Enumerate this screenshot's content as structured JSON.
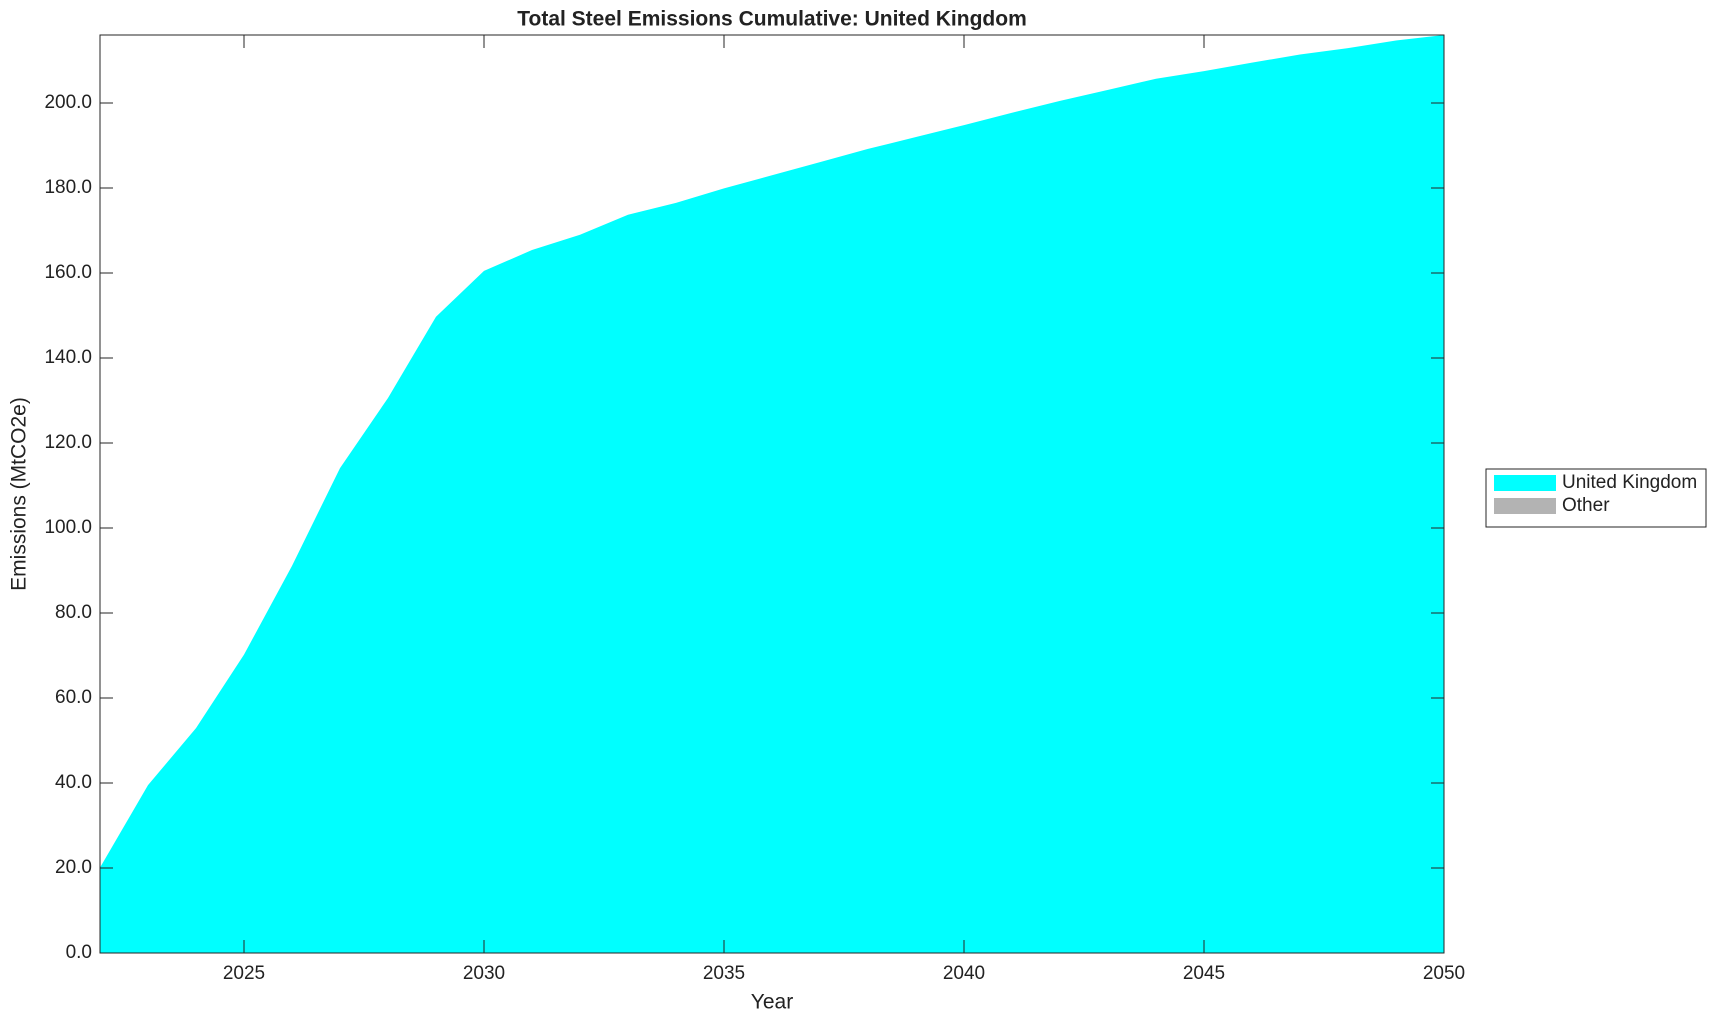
{
  "chart_data": {
    "type": "area",
    "stacked": true,
    "title": "Total Steel Emissions Cumulative: United Kingdom",
    "x_label": "Year",
    "y_label": "Emissions (MtCO2e)",
    "x": [
      2022,
      2023,
      2024,
      2025,
      2026,
      2027,
      2028,
      2029,
      2030,
      2031,
      2032,
      2033,
      2034,
      2035,
      2036,
      2037,
      2038,
      2039,
      2040,
      2041,
      2042,
      2043,
      2044,
      2045,
      2046,
      2047,
      2048,
      2049,
      2050
    ],
    "series": [
      {
        "name": "United Kingdom",
        "color": "#00ffff",
        "values": [
          20.1,
          39.5,
          52.9,
          70.2,
          91.1,
          114.1,
          130.6,
          149.7,
          160.5,
          165.4,
          169.0,
          173.7,
          176.5,
          179.9,
          183.0,
          186.1,
          189.2,
          192.0,
          194.8,
          197.7,
          200.5,
          203.1,
          205.7,
          207.5,
          209.5,
          211.4,
          212.9,
          214.7,
          216.0
        ]
      },
      {
        "name": "Other",
        "color": "#b3b3b3",
        "values": [
          0,
          0,
          0,
          0,
          0,
          0,
          0,
          0,
          0,
          0,
          0,
          0,
          0,
          0,
          0,
          0,
          0,
          0,
          0,
          0,
          0,
          0,
          0,
          0,
          0,
          0,
          0,
          0,
          0
        ]
      }
    ],
    "xlim": [
      2022,
      2050
    ],
    "xticks": [
      2025,
      2030,
      2035,
      2040,
      2045,
      2050
    ],
    "ylim": [
      0,
      216
    ],
    "yticks": [
      {
        "value": 0,
        "label": "0.0"
      },
      {
        "value": 20,
        "label": "20.0"
      },
      {
        "value": 40,
        "label": "40.0"
      },
      {
        "value": 60,
        "label": "60.0"
      },
      {
        "value": 80,
        "label": "80.0"
      },
      {
        "value": 100,
        "label": "100.0"
      },
      {
        "value": 120,
        "label": "120.0"
      },
      {
        "value": 140,
        "label": "140.0"
      },
      {
        "value": 160,
        "label": "160.0"
      },
      {
        "value": 180,
        "label": "180.0"
      },
      {
        "value": 200,
        "label": "200.0"
      }
    ],
    "grid": false,
    "legend_loc": "right"
  }
}
